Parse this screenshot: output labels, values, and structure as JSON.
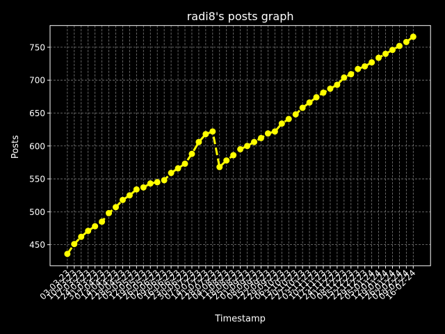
{
  "chart_data": {
    "type": "line",
    "title": "radi8's posts graph",
    "xlabel": "Timestamp",
    "ylabel": "Posts",
    "ylim": [
      418,
      783
    ],
    "yticks": [
      450,
      500,
      550,
      600,
      650,
      700,
      750
    ],
    "grid": true,
    "series_color": "#ffff00",
    "line_style": "dashed",
    "marker": "circle",
    "x": [
      "03-03-23",
      "10-03-23",
      "17-03-23",
      "24-03-23",
      "31-03-23",
      "07-04-23",
      "14-04-23",
      "21-04-23",
      "28-04-23",
      "05-05-23",
      "12-05-23",
      "19-05-23",
      "26-05-23",
      "02-06-23",
      "09-06-23",
      "16-06-23",
      "23-06-23",
      "30-06-23",
      "07-07-23",
      "14-07-23",
      "21-07-23",
      "28-07-23",
      "04-08-23",
      "11-08-23",
      "18-08-23",
      "25-08-23",
      "01-09-23",
      "08-09-23",
      "15-09-23",
      "22-09-23",
      "29-09-23",
      "06-10-23",
      "13-10-23",
      "20-10-23",
      "27-10-23",
      "03-11-23",
      "10-11-23",
      "17-11-23",
      "24-11-23",
      "01-12-23",
      "08-12-23",
      "15-12-23",
      "22-12-23",
      "29-12-23",
      "05-01-24",
      "12-01-24",
      "19-01-24",
      "26-01-24",
      "02-02-24",
      "09-02-24",
      "16-02-24"
    ],
    "x_tick_labels": [
      "03-03-23",
      "10-03-23",
      "17-03-23",
      "24-03-23",
      "31-03-23",
      "07-04-23",
      "14-04-23",
      "21-04-23",
      "28-04-23",
      "05-05-23",
      "12-05-23",
      "19-05-23",
      "26-05-23",
      "02-06-23",
      "09-06-23",
      "16-06-23",
      "23-06-23",
      "30-06-23",
      "07-07-23",
      "14-07-23",
      "21-07-23",
      "28-07-23",
      "04-08-23",
      "11-08-23",
      "18-08-23",
      "25-08-23",
      "01-09-23",
      "08-09-23",
      "15-09-23",
      "22-09-23",
      "29-09-23",
      "06-10-23",
      "13-10-23",
      "20-10-23",
      "27-10-23",
      "03-11-23",
      "10-11-23",
      "17-11-23",
      "24-11-23",
      "01-12-23",
      "08-12-23",
      "15-12-23",
      "22-12-23",
      "29-12-23",
      "05-01-24",
      "12-01-24",
      "19-01-24",
      "26-01-24",
      "02-02-24",
      "09-02-24",
      "16-02-24"
    ],
    "values": [
      436,
      451,
      462,
      471,
      478,
      485,
      498,
      507,
      518,
      525,
      534,
      537,
      543,
      545,
      548,
      559,
      566,
      573,
      588,
      606,
      618,
      622,
      568,
      578,
      586,
      595,
      600,
      606,
      612,
      619,
      622,
      634,
      641,
      648,
      658,
      666,
      674,
      681,
      687,
      693,
      704,
      709,
      717,
      721,
      727,
      734,
      740,
      746,
      752,
      758,
      766
    ]
  }
}
